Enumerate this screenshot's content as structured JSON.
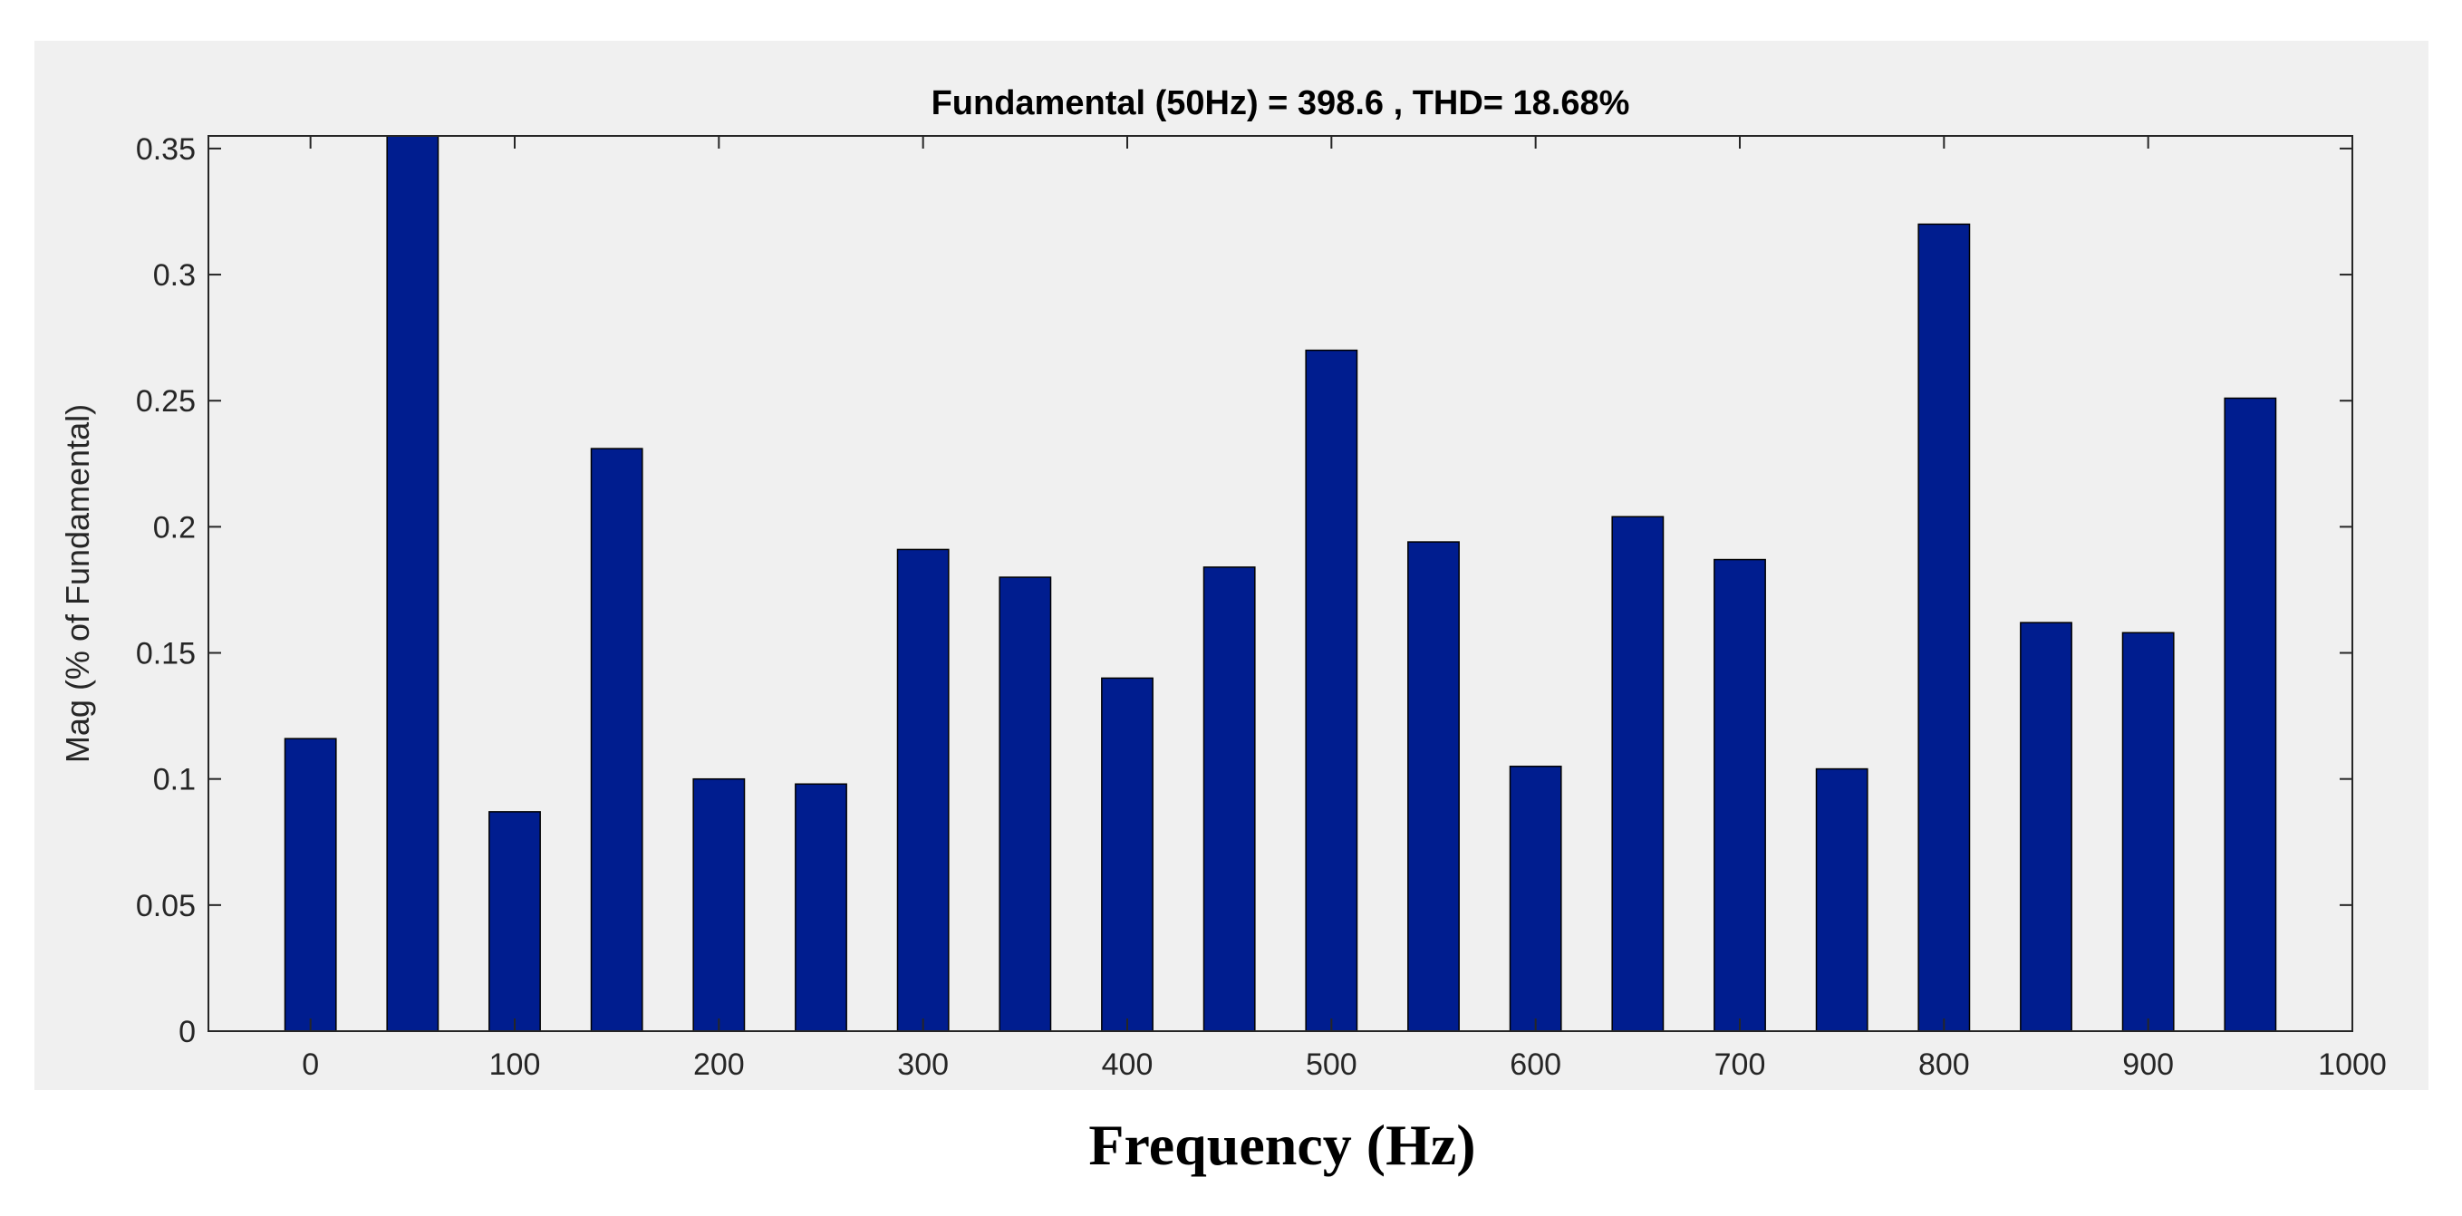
{
  "chart_data": {
    "type": "bar",
    "title": "Fundamental (50Hz) = 398.6 , THD= 18.68%",
    "xlabel": "Frequency (Hz)",
    "ylabel": "Mag (% of Fundamental)",
    "x": [
      0,
      50,
      100,
      150,
      200,
      250,
      300,
      350,
      400,
      450,
      500,
      550,
      600,
      650,
      700,
      750,
      800,
      850,
      900,
      950
    ],
    "values": [
      0.116,
      0.355,
      0.087,
      0.231,
      0.1,
      0.098,
      0.191,
      0.18,
      0.14,
      0.184,
      0.27,
      0.194,
      0.105,
      0.204,
      0.187,
      0.104,
      0.32,
      0.162,
      0.158,
      0.251
    ],
    "xlim": [
      -50,
      1000
    ],
    "ylim": [
      0,
      0.355
    ],
    "xticks": [
      "0",
      "100",
      "200",
      "300",
      "400",
      "500",
      "600",
      "700",
      "800",
      "900",
      "1000"
    ],
    "yticks": [
      "0",
      "0.05",
      "0.1",
      "0.15",
      "0.2",
      "0.25",
      "0.3",
      "0.35"
    ],
    "bar_color": "#001d8f",
    "grid": false,
    "legend": "none"
  }
}
